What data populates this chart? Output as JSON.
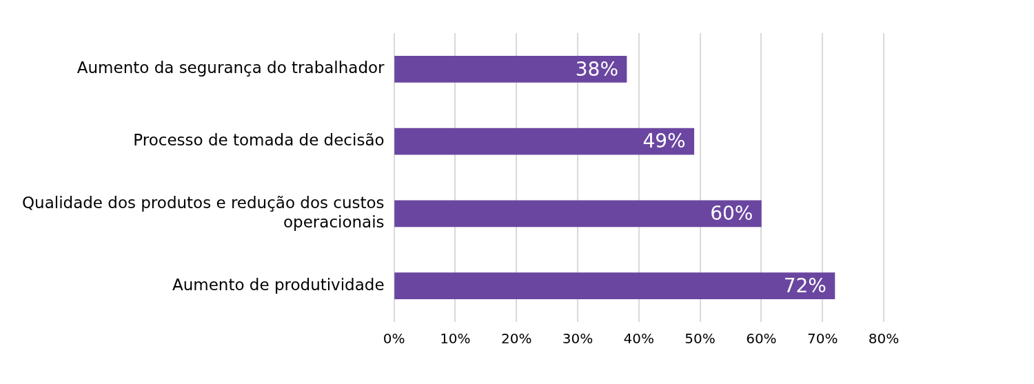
{
  "chart_data": {
    "type": "bar",
    "orientation": "horizontal",
    "categories": [
      "Aumento da segurança do trabalhador",
      "Processo de tomada de decisão",
      "Qualidade dos produtos e redução dos custos operacionais",
      "Aumento de produtividade"
    ],
    "values": [
      38,
      49,
      60,
      72
    ],
    "value_labels": [
      "38%",
      "49%",
      "60%",
      "72%"
    ],
    "color": "#6a46a0",
    "xlim": [
      0,
      80
    ],
    "xticks": [
      {
        "value": 0,
        "label": "0%"
      },
      {
        "value": 10,
        "label": "10%"
      },
      {
        "value": 20,
        "label": "20%"
      },
      {
        "value": 30,
        "label": "30%"
      },
      {
        "value": 40,
        "label": "40%"
      },
      {
        "value": 50,
        "label": "50%"
      },
      {
        "value": 60,
        "label": "60%"
      },
      {
        "value": 70,
        "label": "70%"
      },
      {
        "value": 80,
        "label": "80%"
      }
    ],
    "grid": "x"
  }
}
